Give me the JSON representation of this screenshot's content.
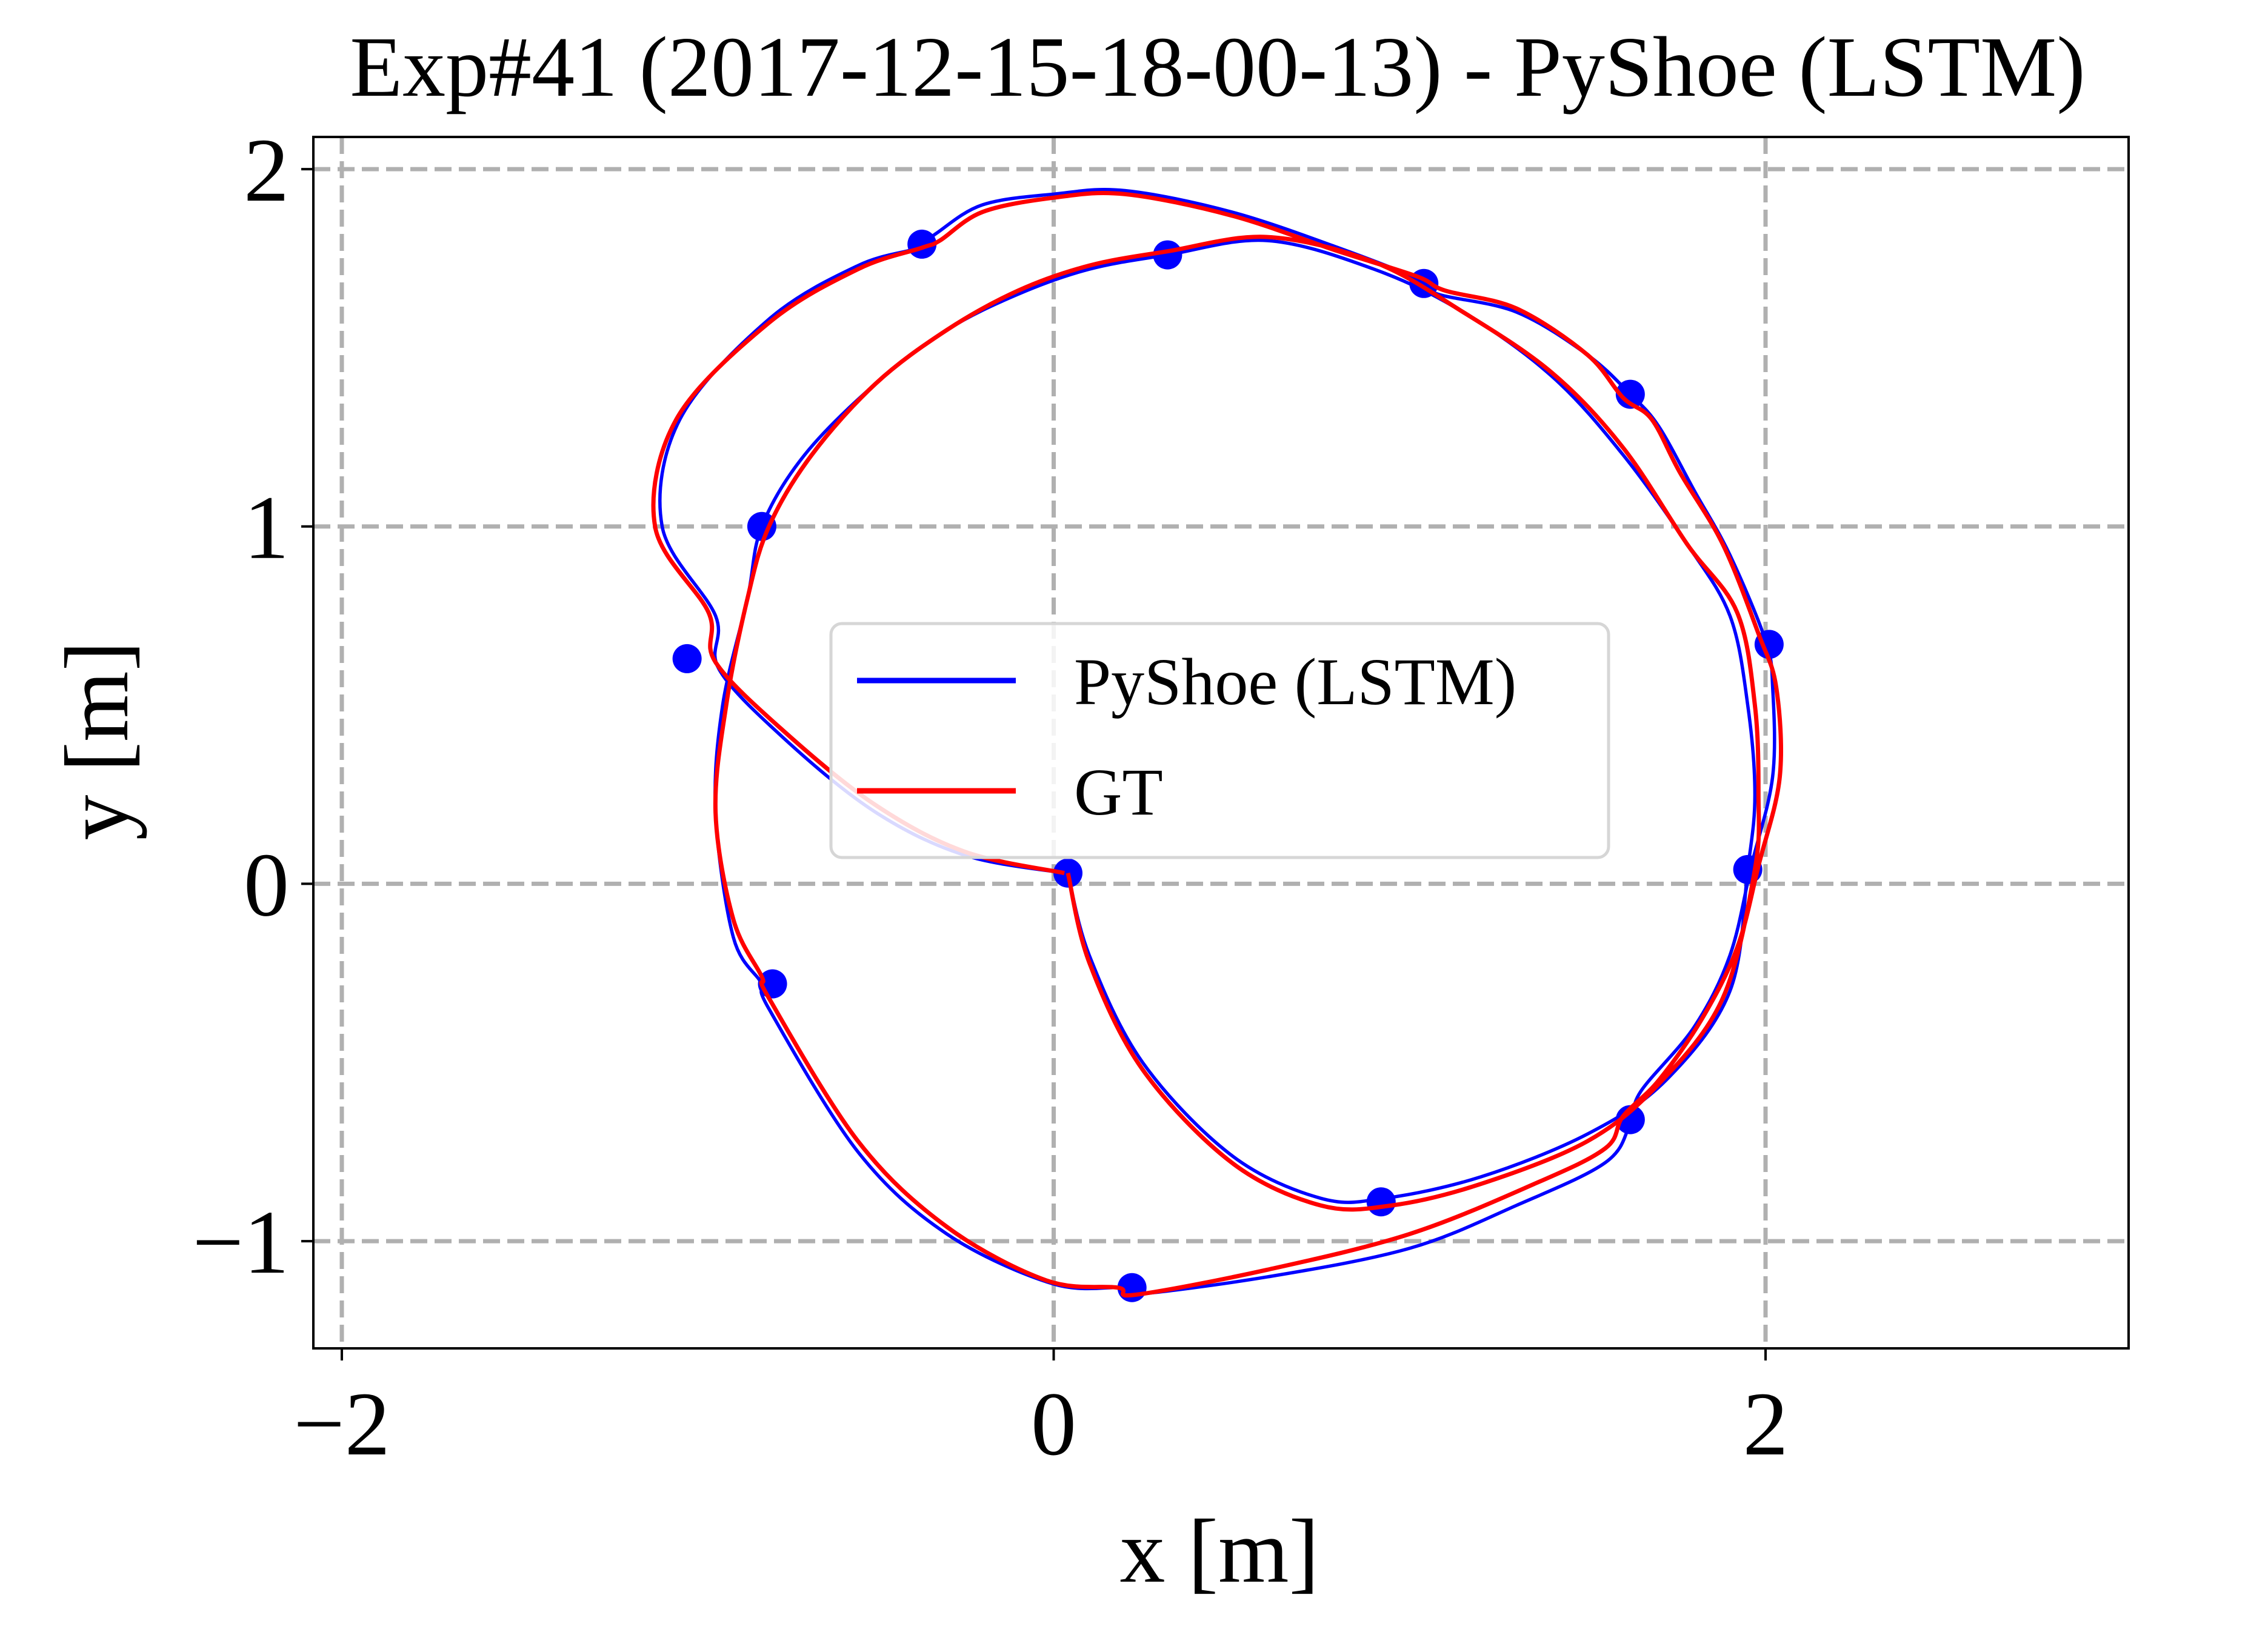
{
  "chart_data": {
    "type": "line",
    "title": "Exp#41 (2017-12-15-18-00-13) - PyShoe (LSTM)",
    "xlabel": "x [m]",
    "ylabel": "y [m]",
    "xlim": [
      -2.08,
      3.02
    ],
    "ylim": [
      -1.3,
      2.09
    ],
    "xticks": [
      -2,
      0,
      2
    ],
    "xtick_labels": [
      "−2",
      "0",
      "2"
    ],
    "yticks": [
      -1,
      0,
      1,
      2
    ],
    "ytick_labels": [
      "−1",
      "0",
      "1",
      "2"
    ],
    "grid": true,
    "legend_position": "center",
    "colors": {
      "pyshoe": "#0000ff",
      "gt": "#ff0000",
      "grid": "#b0b0b0"
    },
    "series": [
      {
        "name": "PyShoe (LSTM)",
        "points": [
          [
            0.03,
            0.03
          ],
          [
            -0.25,
            0.08
          ],
          [
            -0.5,
            0.2
          ],
          [
            -0.75,
            0.4
          ],
          [
            -0.94,
            0.6
          ],
          [
            -0.95,
            0.75
          ],
          [
            -1.1,
            1.0
          ],
          [
            -1.05,
            1.3
          ],
          [
            -0.8,
            1.58
          ],
          [
            -0.55,
            1.73
          ],
          [
            -0.38,
            1.78
          ],
          [
            -0.33,
            1.82
          ],
          [
            -0.2,
            1.9
          ],
          [
            0.0,
            1.93
          ],
          [
            0.2,
            1.94
          ],
          [
            0.5,
            1.88
          ],
          [
            0.8,
            1.78
          ],
          [
            1.03,
            1.69
          ],
          [
            1.08,
            1.65
          ],
          [
            1.3,
            1.6
          ],
          [
            1.5,
            1.48
          ],
          [
            1.62,
            1.37
          ],
          [
            1.7,
            1.28
          ],
          [
            1.8,
            1.1
          ],
          [
            1.9,
            0.92
          ],
          [
            2.0,
            0.68
          ],
          [
            2.02,
            0.55
          ],
          [
            2.02,
            0.3
          ],
          [
            1.96,
            0.05
          ],
          [
            1.9,
            -0.2
          ],
          [
            1.8,
            -0.4
          ],
          [
            1.65,
            -0.58
          ],
          [
            1.62,
            -0.67
          ],
          [
            1.55,
            -0.78
          ],
          [
            1.3,
            -0.9
          ],
          [
            1.0,
            -1.02
          ],
          [
            0.6,
            -1.1
          ],
          [
            0.22,
            -1.15
          ],
          [
            0.2,
            -1.13
          ],
          [
            0.0,
            -1.12
          ],
          [
            -0.3,
            -0.98
          ],
          [
            -0.55,
            -0.75
          ],
          [
            -0.8,
            -0.35
          ],
          [
            -0.82,
            -0.28
          ],
          [
            -0.9,
            -0.15
          ],
          [
            -0.95,
            0.2
          ],
          [
            -0.93,
            0.5
          ],
          [
            -0.86,
            0.8
          ],
          [
            -0.82,
            1.0
          ],
          [
            -0.7,
            1.2
          ],
          [
            -0.5,
            1.4
          ],
          [
            -0.3,
            1.55
          ],
          [
            -0.1,
            1.65
          ],
          [
            0.1,
            1.72
          ],
          [
            0.32,
            1.76
          ],
          [
            0.6,
            1.8
          ],
          [
            0.9,
            1.72
          ],
          [
            1.15,
            1.6
          ],
          [
            1.4,
            1.42
          ],
          [
            1.6,
            1.2
          ],
          [
            1.78,
            0.95
          ],
          [
            1.9,
            0.75
          ],
          [
            1.95,
            0.5
          ],
          [
            1.97,
            0.25
          ],
          [
            1.95,
            0.04
          ],
          [
            1.9,
            -0.3
          ],
          [
            1.72,
            -0.55
          ],
          [
            1.5,
            -0.7
          ],
          [
            1.2,
            -0.82
          ],
          [
            0.93,
            -0.88
          ],
          [
            0.75,
            -0.88
          ],
          [
            0.5,
            -0.76
          ],
          [
            0.25,
            -0.5
          ],
          [
            0.1,
            -0.2
          ],
          [
            0.04,
            0.03
          ]
        ],
        "markers": [
          [
            -0.37,
            1.79
          ],
          [
            0.32,
            1.76
          ],
          [
            1.04,
            1.68
          ],
          [
            1.62,
            1.37
          ],
          [
            -0.82,
            1.0
          ],
          [
            -1.03,
            0.63
          ],
          [
            2.01,
            0.67
          ],
          [
            0.04,
            0.03
          ],
          [
            1.95,
            0.04
          ],
          [
            -0.79,
            -0.28
          ],
          [
            1.62,
            -0.66
          ],
          [
            0.92,
            -0.89
          ],
          [
            0.22,
            -1.13
          ]
        ]
      },
      {
        "name": "GT",
        "points": [
          [
            0.03,
            0.03
          ],
          [
            -0.25,
            0.09
          ],
          [
            -0.5,
            0.22
          ],
          [
            -0.75,
            0.42
          ],
          [
            -0.95,
            0.62
          ],
          [
            -0.97,
            0.76
          ],
          [
            -1.12,
            1.0
          ],
          [
            -1.06,
            1.3
          ],
          [
            -0.8,
            1.57
          ],
          [
            -0.55,
            1.72
          ],
          [
            -0.37,
            1.78
          ],
          [
            -0.32,
            1.8
          ],
          [
            -0.2,
            1.88
          ],
          [
            0.0,
            1.92
          ],
          [
            0.2,
            1.93
          ],
          [
            0.5,
            1.87
          ],
          [
            0.8,
            1.77
          ],
          [
            1.02,
            1.7
          ],
          [
            1.1,
            1.66
          ],
          [
            1.3,
            1.61
          ],
          [
            1.5,
            1.48
          ],
          [
            1.6,
            1.36
          ],
          [
            1.68,
            1.3
          ],
          [
            1.76,
            1.15
          ],
          [
            1.88,
            0.95
          ],
          [
            1.98,
            0.7
          ],
          [
            2.03,
            0.55
          ],
          [
            2.04,
            0.3
          ],
          [
            1.98,
            0.05
          ],
          [
            1.92,
            -0.18
          ],
          [
            1.82,
            -0.38
          ],
          [
            1.7,
            -0.55
          ],
          [
            1.6,
            -0.65
          ],
          [
            1.55,
            -0.74
          ],
          [
            1.35,
            -0.84
          ],
          [
            1.0,
            -0.98
          ],
          [
            0.6,
            -1.08
          ],
          [
            0.23,
            -1.15
          ],
          [
            0.18,
            -1.13
          ],
          [
            -0.02,
            -1.11
          ],
          [
            -0.3,
            -0.96
          ],
          [
            -0.55,
            -0.72
          ],
          [
            -0.8,
            -0.32
          ],
          [
            -0.82,
            -0.26
          ],
          [
            -0.9,
            -0.1
          ],
          [
            -0.95,
            0.2
          ],
          [
            -0.92,
            0.5
          ],
          [
            -0.86,
            0.8
          ],
          [
            -0.8,
            1.0
          ],
          [
            -0.68,
            1.2
          ],
          [
            -0.5,
            1.4
          ],
          [
            -0.3,
            1.55
          ],
          [
            -0.1,
            1.66
          ],
          [
            0.1,
            1.73
          ],
          [
            0.32,
            1.77
          ],
          [
            0.6,
            1.81
          ],
          [
            0.9,
            1.74
          ],
          [
            1.15,
            1.6
          ],
          [
            1.4,
            1.43
          ],
          [
            1.6,
            1.22
          ],
          [
            1.78,
            0.95
          ],
          [
            1.92,
            0.76
          ],
          [
            1.97,
            0.5
          ],
          [
            1.98,
            0.25
          ],
          [
            1.97,
            0.04
          ],
          [
            1.88,
            -0.32
          ],
          [
            1.7,
            -0.56
          ],
          [
            1.5,
            -0.72
          ],
          [
            1.2,
            -0.84
          ],
          [
            0.95,
            -0.9
          ],
          [
            0.75,
            -0.9
          ],
          [
            0.5,
            -0.78
          ],
          [
            0.25,
            -0.52
          ],
          [
            0.1,
            -0.22
          ],
          [
            0.04,
            0.03
          ]
        ]
      }
    ]
  }
}
